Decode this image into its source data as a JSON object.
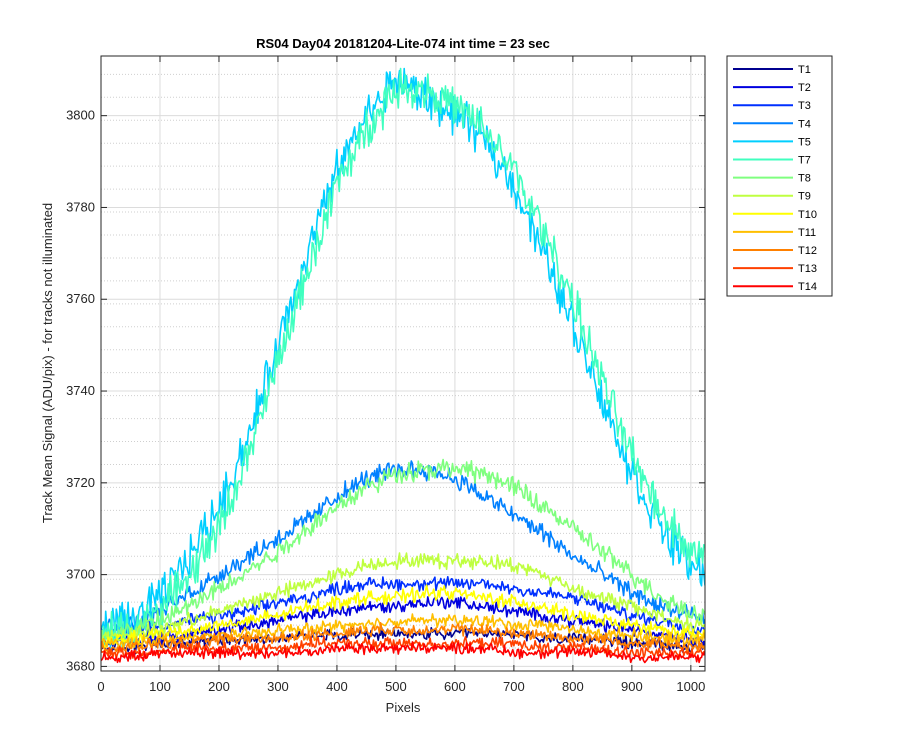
{
  "chart_data": {
    "type": "line",
    "title": "RS04 Day04 20181204-Lite-074 int time = 23 sec",
    "xlabel": "Pixels",
    "ylabel": "Track Mean Signal (ADU/pix) - for tracks not illuminated",
    "xlim": [
      0,
      1024
    ],
    "ylim": [
      3679,
      3813
    ],
    "xticks": [
      0,
      100,
      200,
      300,
      400,
      500,
      600,
      700,
      800,
      900,
      1000
    ],
    "yticks": [
      3680,
      3700,
      3720,
      3740,
      3760,
      3780,
      3800
    ],
    "grid": true,
    "minor_grid": true,
    "legend_position": "outside-right-top",
    "x": [
      0,
      50,
      100,
      150,
      200,
      250,
      300,
      350,
      400,
      450,
      500,
      550,
      600,
      650,
      700,
      750,
      800,
      850,
      900,
      950,
      1000,
      1024
    ],
    "series": [
      {
        "name": "T1",
        "color": "#00008f",
        "values": [
          3684,
          3684,
          3685,
          3685,
          3686,
          3686,
          3686,
          3687,
          3687,
          3687,
          3687,
          3687,
          3687,
          3687,
          3687,
          3686,
          3686,
          3686,
          3685,
          3685,
          3684,
          3684
        ]
      },
      {
        "name": "T2",
        "color": "#0000df",
        "values": [
          3685,
          3686,
          3686,
          3687,
          3688,
          3689,
          3690,
          3691,
          3692,
          3693,
          3693,
          3694,
          3694,
          3693,
          3692,
          3691,
          3690,
          3689,
          3688,
          3687,
          3686,
          3686
        ]
      },
      {
        "name": "T3",
        "color": "#0030ff",
        "values": [
          3687,
          3688,
          3689,
          3690,
          3691,
          3692,
          3694,
          3695,
          3697,
          3698,
          3698,
          3698,
          3698,
          3698,
          3697,
          3696,
          3695,
          3693,
          3691,
          3690,
          3688,
          3688
        ]
      },
      {
        "name": "T4",
        "color": "#0080ff",
        "values": [
          3688,
          3689,
          3692,
          3696,
          3700,
          3704,
          3708,
          3712,
          3717,
          3721,
          3723,
          3723,
          3721,
          3717,
          3713,
          3709,
          3704,
          3700,
          3696,
          3693,
          3691,
          3690
        ]
      },
      {
        "name": "T5",
        "color": "#00cfff",
        "values": [
          3688,
          3690,
          3695,
          3704,
          3715,
          3730,
          3750,
          3770,
          3788,
          3800,
          3808,
          3804,
          3800,
          3795,
          3785,
          3770,
          3755,
          3738,
          3722,
          3710,
          3702,
          3700
        ]
      },
      {
        "name": "T7",
        "color": "#40ffbf",
        "values": [
          3687,
          3688,
          3692,
          3700,
          3710,
          3726,
          3746,
          3766,
          3785,
          3797,
          3806,
          3806,
          3802,
          3797,
          3788,
          3775,
          3760,
          3742,
          3726,
          3714,
          3705,
          3703
        ]
      },
      {
        "name": "T8",
        "color": "#7fff7f",
        "values": [
          3686,
          3688,
          3690,
          3693,
          3697,
          3701,
          3705,
          3710,
          3715,
          3719,
          3722,
          3723,
          3723,
          3722,
          3719,
          3715,
          3710,
          3705,
          3700,
          3695,
          3692,
          3691
        ]
      },
      {
        "name": "T9",
        "color": "#bfff40",
        "values": [
          3686,
          3687,
          3688,
          3690,
          3692,
          3694,
          3696,
          3698,
          3700,
          3702,
          3703,
          3703,
          3703,
          3703,
          3702,
          3700,
          3697,
          3695,
          3693,
          3691,
          3689,
          3689
        ]
      },
      {
        "name": "T10",
        "color": "#ffff00",
        "values": [
          3685,
          3686,
          3687,
          3688,
          3689,
          3690,
          3691,
          3693,
          3694,
          3695,
          3695,
          3696,
          3696,
          3695,
          3694,
          3693,
          3691,
          3690,
          3689,
          3688,
          3687,
          3687
        ]
      },
      {
        "name": "T11",
        "color": "#ffbf00",
        "values": [
          3685,
          3685,
          3686,
          3686,
          3687,
          3687,
          3688,
          3688,
          3689,
          3689,
          3690,
          3690,
          3690,
          3690,
          3689,
          3689,
          3688,
          3687,
          3687,
          3686,
          3686,
          3686
        ]
      },
      {
        "name": "T12",
        "color": "#ff8000",
        "values": [
          3684,
          3684,
          3685,
          3685,
          3686,
          3686,
          3686,
          3687,
          3687,
          3688,
          3688,
          3688,
          3688,
          3688,
          3687,
          3687,
          3686,
          3686,
          3685,
          3685,
          3684,
          3684
        ]
      },
      {
        "name": "T13",
        "color": "#ff4000",
        "values": [
          3683,
          3683,
          3683,
          3684,
          3684,
          3684,
          3684,
          3685,
          3685,
          3685,
          3685,
          3685,
          3685,
          3685,
          3685,
          3684,
          3684,
          3684,
          3683,
          3683,
          3683,
          3683
        ]
      },
      {
        "name": "T14",
        "color": "#ff0000",
        "values": [
          3682,
          3682,
          3683,
          3683,
          3683,
          3683,
          3683,
          3683,
          3684,
          3684,
          3684,
          3684,
          3684,
          3684,
          3683,
          3683,
          3683,
          3683,
          3682,
          3682,
          3682,
          3682
        ]
      }
    ]
  }
}
